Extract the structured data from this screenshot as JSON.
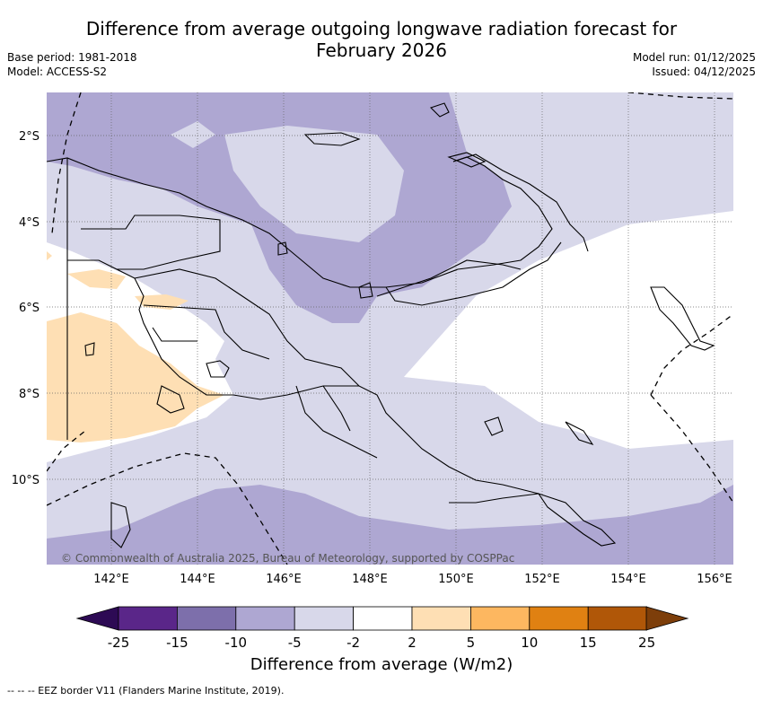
{
  "title_line1": "Difference from average outgoing longwave radiation forecast for",
  "title_line2": "February 2026",
  "base_period": "Base period: 1981-2018",
  "model": "Model: ACCESS-S2",
  "model_run": "Model run: 01/12/2025",
  "issued": "Issued: 04/12/2025",
  "lat_labels": [
    "2°S",
    "4°S",
    "6°S",
    "8°S",
    "10°S"
  ],
  "lon_labels": [
    "142°E",
    "144°E",
    "146°E",
    "148°E",
    "150°E",
    "152°E",
    "154°E",
    "156°E"
  ],
  "copyright": "© Commonwealth of Australia 2025, Bureau of Meteorology, supported by COSPPac",
  "colorbar": {
    "ticks": [
      "-25",
      "-15",
      "-10",
      "-5",
      "-2",
      "2",
      "5",
      "10",
      "15",
      "25"
    ],
    "colors": [
      "#2d0a54",
      "#5a2689",
      "#7d6fab",
      "#aea7d2",
      "#d8d8ea",
      "#ffffff",
      "#fedfb4",
      "#fdb760",
      "#e08112",
      "#b05708",
      "#7d3e0a"
    ],
    "label": "Difference from average (W/m2)"
  },
  "footnote": "--  --  -- EEZ border V11 (Flanders Marine Institute, 2019)."
}
